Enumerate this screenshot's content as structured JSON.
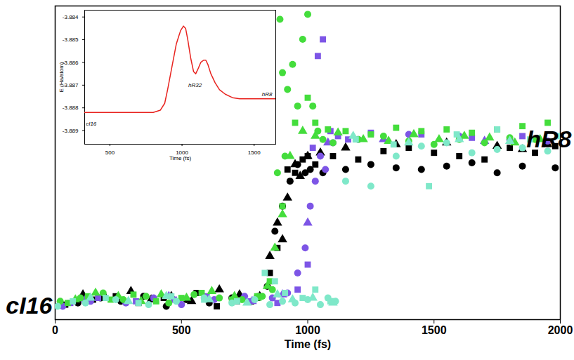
{
  "chart_data": [
    {
      "type": "scatter",
      "xlabel": "Time (fs)",
      "xlim": [
        0,
        2000
      ],
      "xticks": [
        0,
        500,
        1000,
        1500,
        2000
      ],
      "ylim": [
        -0.08,
        1.8
      ],
      "tick_labels": "x",
      "grid": false,
      "annotations": [
        {
          "text": "cI16",
          "x": 0,
          "y": 0
        },
        {
          "text": "hR8",
          "x": 2000,
          "y": 1
        }
      ],
      "series": [
        {
          "color": "#000000",
          "marker": "circle",
          "x": [
            90,
            180,
            260,
            350,
            440,
            520,
            610,
            700,
            780,
            840,
            870,
            900,
            930,
            960,
            990,
            1010,
            1060,
            1150,
            1250,
            1350,
            1450,
            1550,
            1650,
            1750,
            1850,
            1980
          ],
          "values": [
            0.02,
            0.05,
            0.03,
            0.06,
            0.0,
            0.04,
            0.02,
            0.05,
            0.03,
            0.12,
            0.45,
            0.6,
            0.75,
            0.85,
            0.8,
            0.82,
            0.8,
            0.82,
            0.85,
            0.83,
            0.82,
            0.84,
            0.86,
            0.8,
            0.84,
            0.83
          ]
        },
        {
          "color": "#000000",
          "marker": "square",
          "x": [
            40,
            150,
            240,
            330,
            430,
            560,
            640,
            720,
            800,
            850,
            880,
            920,
            950,
            980,
            1000,
            1030,
            1100,
            1200,
            1300,
            1400,
            1500,
            1600,
            1700,
            1800,
            1900,
            1980
          ],
          "values": [
            0.01,
            0.04,
            0.06,
            0.02,
            0.05,
            0.08,
            0.0,
            0.03,
            0.05,
            0.2,
            0.35,
            0.82,
            0.8,
            0.88,
            0.9,
            0.85,
            0.9,
            0.88,
            0.93,
            0.95,
            0.92,
            0.9,
            0.88,
            0.95,
            0.92,
            0.96
          ]
        },
        {
          "color": "#000000",
          "marker": "triangle",
          "x": [
            110,
            200,
            300,
            380,
            460,
            540,
            650,
            730,
            810,
            850,
            880,
            900,
            920,
            950,
            970,
            1000,
            1050,
            1150,
            1350,
            1550,
            1750,
            1850,
            1950
          ],
          "values": [
            0.07,
            0.05,
            0.09,
            0.04,
            0.06,
            0.03,
            0.1,
            0.07,
            0.06,
            0.3,
            0.5,
            0.4,
            0.65,
            0.85,
            0.78,
            0.9,
            0.92,
            0.95,
            0.97,
            0.98,
            0.96,
            0.94,
            0.97
          ]
        },
        {
          "color": "#7d55e6",
          "marker": "circle",
          "x": [
            30,
            140,
            280,
            390,
            500,
            630,
            750,
            860,
            920,
            960,
            990,
            1010,
            1030,
            1050,
            1070,
            1100,
            1200,
            1400,
            1600,
            1800,
            1950
          ],
          "values": [
            0.0,
            0.03,
            0.02,
            0.05,
            0.01,
            0.04,
            0.06,
            0.05,
            0.08,
            0.2,
            0.35,
            0.6,
            0.75,
            0.9,
            0.82,
            0.98,
            1.0,
            1.03,
            1.02,
            1.0,
            0.99
          ]
        },
        {
          "color": "#7d55e6",
          "marker": "square",
          "x": [
            60,
            170,
            320,
            470,
            600,
            770,
            880,
            960,
            1000,
            1020,
            1040,
            1060,
            1090,
            1120,
            1160,
            1250,
            1450,
            1650,
            1850
          ],
          "values": [
            0.02,
            0.05,
            0.03,
            0.04,
            0.06,
            0.03,
            0.02,
            0.1,
            0.25,
            0.95,
            1.5,
            1.6,
            1.05,
            1.02,
            1.0,
            1.04,
            1.03,
            1.01,
            1.02
          ]
        },
        {
          "color": "#7d55e6",
          "marker": "triangle",
          "x": [
            120,
            450,
            780,
            900,
            1000,
            1080,
            1300,
            1700
          ],
          "values": [
            0.04,
            0.06,
            0.03,
            0.07,
            0.5,
            0.98,
            1.0,
            0.99
          ]
        },
        {
          "color": "#44dd3c",
          "marker": "circle",
          "x": [
            20,
            100,
            190,
            270,
            360,
            450,
            550,
            650,
            740,
            820,
            860,
            880,
            890,
            900,
            910,
            920,
            940,
            960,
            980,
            1000,
            1020,
            1040,
            1060,
            1100,
            1200,
            1300,
            1400,
            1500,
            1600,
            1700,
            1800,
            1900
          ],
          "values": [
            0.03,
            0.05,
            0.08,
            0.04,
            0.06,
            0.02,
            0.07,
            0.05,
            0.04,
            0.06,
            0.1,
            0.8,
            1.72,
            1.4,
            0.9,
            1.3,
            1.45,
            1.2,
            1.6,
            1.75,
            1.2,
            1.05,
            1.0,
            0.98,
            1.0,
            1.02,
            0.99,
            0.97,
            1.0,
            0.98,
            1.01,
            1.0
          ]
        },
        {
          "color": "#44dd3c",
          "marker": "square",
          "x": [
            50,
            130,
            220,
            310,
            400,
            500,
            580,
            700,
            800,
            850,
            900,
            950,
            1000,
            1030,
            1080,
            1150,
            1250,
            1350,
            1450,
            1550,
            1650,
            1750,
            1850,
            1950
          ],
          "values": [
            0.02,
            0.06,
            0.04,
            0.07,
            0.03,
            0.05,
            0.08,
            0.04,
            0.06,
            0.15,
            0.6,
            1.1,
            1.25,
            1.1,
            1.06,
            1.05,
            1.03,
            1.07,
            1.05,
            1.06,
            1.04,
            1.06,
            1.08,
            1.1
          ]
        },
        {
          "color": "#44dd3c",
          "marker": "triangle",
          "x": [
            80,
            160,
            250,
            340,
            420,
            520,
            620,
            710,
            800,
            840,
            870,
            900,
            930,
            980,
            1030,
            1120,
            1220,
            1320,
            1420,
            1520,
            1620,
            1720,
            1820,
            1920
          ],
          "values": [
            0.04,
            0.08,
            0.06,
            0.03,
            0.07,
            0.05,
            0.09,
            0.06,
            0.05,
            0.12,
            0.35,
            0.55,
            0.9,
            1.05,
            1.02,
            1.04,
            1.0,
            0.99,
            1.03,
            1.0,
            1.02,
            1.01,
            0.98,
            1.0
          ]
        },
        {
          "color": "#7fe8c9",
          "marker": "circle",
          "x": [
            10,
            120,
            240,
            370,
            480,
            590,
            700,
            790,
            850,
            900,
            950,
            1000,
            1050,
            1080,
            1110,
            1150,
            1250,
            1350,
            1450,
            1550,
            1650,
            1750,
            1850,
            1950
          ],
          "values": [
            0.0,
            0.02,
            0.04,
            0.01,
            0.03,
            0.05,
            0.02,
            0.04,
            0.01,
            0.03,
            0.02,
            0.04,
            0.01,
            0.05,
            0.03,
            0.75,
            0.72,
            0.9,
            0.96,
            0.98,
            0.92,
            0.94,
            0.95,
            0.93
          ]
        },
        {
          "color": "#7fe8c9",
          "marker": "square",
          "x": [
            70,
            200,
            330,
            460,
            590,
            720,
            830,
            870,
            910,
            980,
            1030,
            1090,
            1190,
            1340,
            1480,
            1590,
            1750,
            1880,
            1990
          ],
          "values": [
            0.03,
            0.05,
            0.02,
            0.06,
            0.04,
            0.03,
            0.2,
            0.15,
            0.08,
            0.05,
            0.1,
            0.03,
            1.0,
            0.97,
            0.72,
            1.03,
            1.06,
            1.0,
            1.02
          ]
        },
        {
          "color": "#7fe8c9",
          "marker": "triangle",
          "x": [
            140,
            290,
            440,
            610,
            760,
            880,
            940,
            1020,
            1100,
            1180,
            1400,
            1600,
            1800
          ],
          "values": [
            0.05,
            0.03,
            0.06,
            0.04,
            0.02,
            0.07,
            0.04,
            0.05,
            0.02,
            1.02,
            0.98,
            1.0,
            0.99
          ]
        }
      ]
    },
    {
      "type": "line",
      "xlabel": "Time (fs)",
      "ylabel": "E (Ha/atom)",
      "xlim": [
        325,
        1650
      ],
      "xticks": [
        500,
        1000,
        1500
      ],
      "ylim": [
        -3.8896,
        -3.8837
      ],
      "yticks": [
        -3.889,
        -3.888,
        -3.887,
        -3.886,
        -3.885,
        -3.884
      ],
      "grid": false,
      "annotations": [
        {
          "text": "cI16",
          "x": 370,
          "y": -3.8887
        },
        {
          "text": "hR32",
          "x": 1090,
          "y": -3.887
        },
        {
          "text": "hR8",
          "x": 1590,
          "y": -3.8874
        }
      ],
      "series": [
        {
          "color": "#e8231f",
          "x": [
            325,
            400,
            500,
            600,
            700,
            800,
            850,
            880,
            900,
            930,
            960,
            990,
            1010,
            1025,
            1040,
            1060,
            1080,
            1095,
            1110,
            1130,
            1150,
            1165,
            1180,
            1200,
            1230,
            1260,
            1300,
            1350,
            1400,
            1450,
            1500,
            1600,
            1650
          ],
          "values": [
            -3.8882,
            -3.8882,
            -3.8882,
            -3.8882,
            -3.8882,
            -3.8882,
            -3.8881,
            -3.8878,
            -3.8872,
            -3.8862,
            -3.8852,
            -3.8846,
            -3.8844,
            -3.8845,
            -3.885,
            -3.8858,
            -3.8864,
            -3.8865,
            -3.8863,
            -3.886,
            -3.8859,
            -3.8859,
            -3.8861,
            -3.8865,
            -3.8869,
            -3.8872,
            -3.8874,
            -3.88755,
            -3.8876,
            -3.8876,
            -3.8876,
            -3.8876,
            -3.8876
          ]
        }
      ]
    }
  ]
}
